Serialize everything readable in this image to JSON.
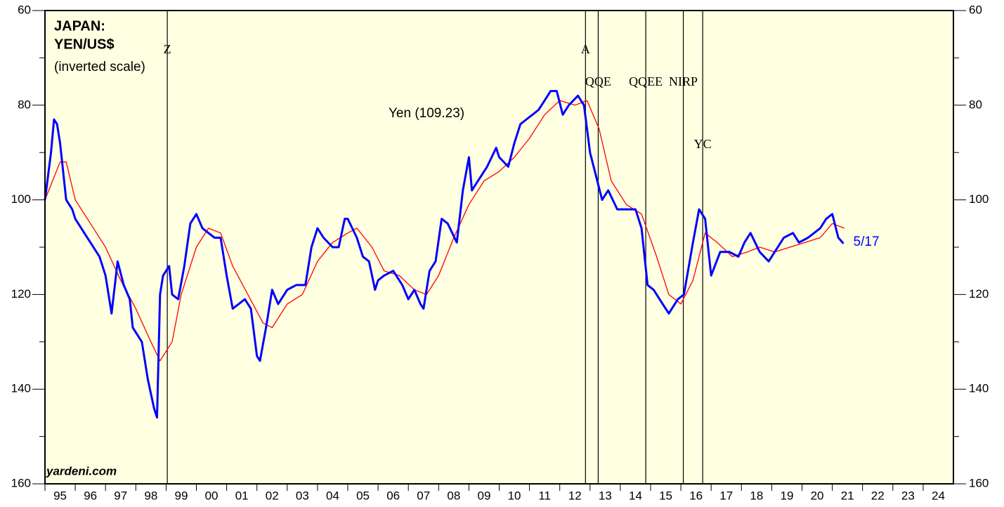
{
  "chart_data": {
    "type": "line",
    "title": "JAPAN:",
    "subtitle": "YEN/US$",
    "note": "(inverted scale)",
    "source": "yardeni.com",
    "inverted": true,
    "xlim": [
      1995,
      2025
    ],
    "ylim": [
      60,
      160
    ],
    "yticks": [
      60,
      80,
      100,
      120,
      140,
      160
    ],
    "yminor": [
      70,
      90,
      110,
      130,
      150
    ],
    "xticks": [
      {
        "value": 1995,
        "label": "95"
      },
      {
        "value": 1996,
        "label": "96"
      },
      {
        "value": 1997,
        "label": "97"
      },
      {
        "value": 1998,
        "label": "98"
      },
      {
        "value": 1999,
        "label": "99"
      },
      {
        "value": 2000,
        "label": "00"
      },
      {
        "value": 2001,
        "label": "01"
      },
      {
        "value": 2002,
        "label": "02"
      },
      {
        "value": 2003,
        "label": "03"
      },
      {
        "value": 2004,
        "label": "04"
      },
      {
        "value": 2005,
        "label": "05"
      },
      {
        "value": 2006,
        "label": "06"
      },
      {
        "value": 2007,
        "label": "07"
      },
      {
        "value": 2008,
        "label": "08"
      },
      {
        "value": 2009,
        "label": "09"
      },
      {
        "value": 2010,
        "label": "10"
      },
      {
        "value": 2011,
        "label": "11"
      },
      {
        "value": 2012,
        "label": "12"
      },
      {
        "value": 2013,
        "label": "13"
      },
      {
        "value": 2014,
        "label": "14"
      },
      {
        "value": 2015,
        "label": "15"
      },
      {
        "value": 2016,
        "label": "16"
      },
      {
        "value": 2017,
        "label": "17"
      },
      {
        "value": 2018,
        "label": "18"
      },
      {
        "value": 2019,
        "label": "19"
      },
      {
        "value": 2020,
        "label": "20"
      },
      {
        "value": 2021,
        "label": "21"
      },
      {
        "value": 2022,
        "label": "22"
      },
      {
        "value": 2023,
        "label": "23"
      },
      {
        "value": 2024,
        "label": "24"
      }
    ],
    "events": [
      {
        "label": "Z",
        "x": 1999.04
      },
      {
        "label": "A",
        "x": 2012.85
      },
      {
        "label": "QQE",
        "x": 2013.27
      },
      {
        "label": "QQEE",
        "x": 2014.84
      },
      {
        "label": "NIRP",
        "x": 2016.08
      },
      {
        "label": "YC",
        "x": 2016.72
      }
    ],
    "series": [
      {
        "name": "Yen (109.23)",
        "color": "#0000ff",
        "end_label": "5/17",
        "x": [
          1995.0,
          1995.2,
          1995.3,
          1995.4,
          1995.5,
          1995.7,
          1995.9,
          1996.0,
          1996.3,
          1996.5,
          1996.8,
          1997.0,
          1997.2,
          1997.4,
          1997.6,
          1997.8,
          1997.9,
          1998.2,
          1998.4,
          1998.6,
          1998.7,
          1998.8,
          1998.9,
          1999.1,
          1999.2,
          1999.4,
          1999.6,
          1999.8,
          2000.0,
          2000.2,
          2000.4,
          2000.6,
          2000.8,
          2001.0,
          2001.2,
          2001.4,
          2001.6,
          2001.8,
          2002.0,
          2002.1,
          2002.3,
          2002.5,
          2002.7,
          2002.9,
          2003.0,
          2003.3,
          2003.6,
          2003.8,
          2004.0,
          2004.2,
          2004.5,
          2004.7,
          2004.9,
          2005.0,
          2005.3,
          2005.5,
          2005.7,
          2005.9,
          2006.0,
          2006.2,
          2006.5,
          2006.8,
          2007.0,
          2007.2,
          2007.4,
          2007.5,
          2007.7,
          2007.9,
          2008.1,
          2008.3,
          2008.6,
          2008.8,
          2009.0,
          2009.1,
          2009.3,
          2009.6,
          2009.9,
          2010.0,
          2010.3,
          2010.5,
          2010.7,
          2010.9,
          2011.1,
          2011.3,
          2011.5,
          2011.7,
          2011.9,
          2012.1,
          2012.3,
          2012.6,
          2012.8,
          2013.0,
          2013.2,
          2013.4,
          2013.6,
          2013.9,
          2014.2,
          2014.5,
          2014.7,
          2014.9,
          2015.1,
          2015.4,
          2015.6,
          2015.9,
          2016.1,
          2016.4,
          2016.6,
          2016.8,
          2016.95,
          2017.0,
          2017.3,
          2017.6,
          2017.9,
          2018.1,
          2018.3,
          2018.6,
          2018.9,
          2019.1,
          2019.4,
          2019.7,
          2019.9,
          2020.2,
          2020.4,
          2020.6,
          2020.8,
          2021.0,
          2021.2,
          2021.37
        ],
        "values": [
          100,
          90,
          83,
          84,
          88,
          100,
          102,
          104,
          107,
          109,
          112,
          116,
          124,
          113,
          118,
          121,
          127,
          130,
          138,
          144,
          146,
          120,
          116,
          114,
          120,
          121,
          114,
          105,
          103,
          106,
          107,
          108,
          108,
          116,
          123,
          122,
          121,
          123,
          133,
          134,
          127,
          119,
          122,
          120,
          119,
          118,
          118,
          110,
          106,
          108,
          110,
          110,
          104,
          104,
          108,
          112,
          113,
          119,
          117,
          116,
          115,
          118,
          121,
          119,
          122,
          123,
          115,
          113,
          104,
          105,
          109,
          98,
          91,
          98,
          96,
          93,
          89,
          91,
          93,
          88,
          84,
          83,
          82,
          81,
          79,
          77,
          77,
          82,
          80,
          78,
          80,
          90,
          95,
          100,
          98,
          102,
          102,
          102,
          106,
          118,
          119,
          122,
          124,
          121,
          120,
          109,
          102,
          104,
          113,
          116,
          111,
          111,
          112,
          109,
          107,
          111,
          113,
          111,
          108,
          107,
          109,
          108,
          107,
          106,
          104,
          103,
          108,
          109.23
        ]
      },
      {
        "color": "#ff0000",
        "x": [
          1995.0,
          1995.5,
          1995.7,
          1996.0,
          1996.5,
          1997.0,
          1997.5,
          1998.0,
          1998.5,
          1998.8,
          1999.2,
          1999.5,
          2000.0,
          2000.4,
          2000.8,
          2001.2,
          2001.7,
          2002.2,
          2002.5,
          2003.0,
          2003.5,
          2004.0,
          2004.5,
          2005.0,
          2005.3,
          2005.8,
          2006.2,
          2006.7,
          2007.2,
          2007.6,
          2008.0,
          2008.5,
          2009.0,
          2009.5,
          2010.0,
          2010.5,
          2011.0,
          2011.5,
          2012.0,
          2012.5,
          2012.9,
          2013.3,
          2013.7,
          2014.2,
          2014.7,
          2015.2,
          2015.6,
          2016.0,
          2016.4,
          2016.8,
          2017.2,
          2017.7,
          2018.2,
          2018.6,
          2019.1,
          2019.6,
          2020.1,
          2020.6,
          2021.0,
          2021.4
        ],
        "values": [
          100,
          92,
          92,
          100,
          105,
          110,
          117,
          123,
          130,
          134,
          130,
          120,
          110,
          106,
          107,
          114,
          120,
          126,
          127,
          122,
          120,
          113,
          109,
          107,
          106,
          110,
          115,
          116,
          119,
          120,
          116,
          108,
          101,
          96,
          94,
          91,
          87,
          82,
          79,
          80,
          79,
          85,
          96,
          101,
          103,
          112,
          120,
          122,
          117,
          107,
          109,
          112,
          111,
          110,
          111,
          110,
          109,
          108,
          105,
          106
        ]
      }
    ]
  }
}
